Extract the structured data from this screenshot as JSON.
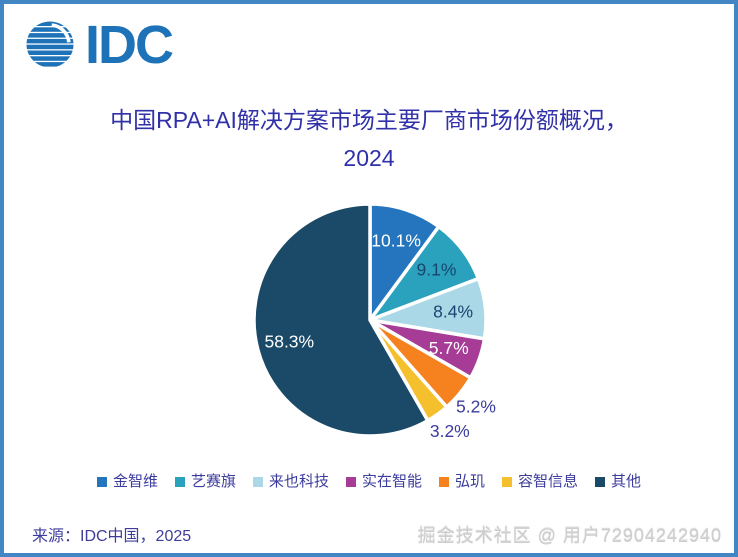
{
  "header": {
    "logo_text": "IDC"
  },
  "title": {
    "line1": "中国RPA+AI解决方案市场主要厂商市场份额概况，",
    "line2": "2024"
  },
  "chart_data": {
    "type": "pie",
    "title": "中国RPA+AI解决方案市场主要厂商市场份额概况，2024",
    "unit": "percent",
    "total": 100,
    "start_angle_deg": 0,
    "direction": "clockwise",
    "legend_position": "bottom",
    "slices": [
      {
        "name": "金智维",
        "value": 10.1,
        "label": "10.1%",
        "color": "#2475BE",
        "label_color": "#FFFFFF",
        "label_inside": true
      },
      {
        "name": "艺赛旗",
        "value": 9.1,
        "label": "9.1%",
        "color": "#2AA2BD",
        "label_color": "#1B4470",
        "label_inside": true
      },
      {
        "name": "来也科技",
        "value": 8.4,
        "label": "8.4%",
        "color": "#ABD8E6",
        "label_color": "#1B4470",
        "label_inside": true
      },
      {
        "name": "实在智能",
        "value": 5.7,
        "label": "5.7%",
        "color": "#A63C96",
        "label_color": "#FFFFFF",
        "label_inside": true
      },
      {
        "name": "弘玑",
        "value": 5.2,
        "label": "5.2%",
        "color": "#F5821F",
        "label_color": "#3C3C9E",
        "label_inside": false
      },
      {
        "name": "容智信息",
        "value": 3.2,
        "label": "3.2%",
        "color": "#F5C02D",
        "label_color": "#3C3C9E",
        "label_inside": false
      },
      {
        "name": "其他",
        "value": 58.3,
        "label": "58.3%",
        "color": "#1B4A69",
        "label_color": "#FFFFFF",
        "label_inside": true
      }
    ]
  },
  "footer": {
    "source": "来源：IDC中国，2025",
    "watermark": "掘金技术社区 @ 用户72904242940"
  },
  "colors": {
    "border": "#4286C4",
    "logo_blue": "#1E73B8",
    "title_text": "#3030A8",
    "legend_text": "#3C3C9E",
    "source_text": "#3F3D9B",
    "watermark_text": "#CDCDCD"
  }
}
